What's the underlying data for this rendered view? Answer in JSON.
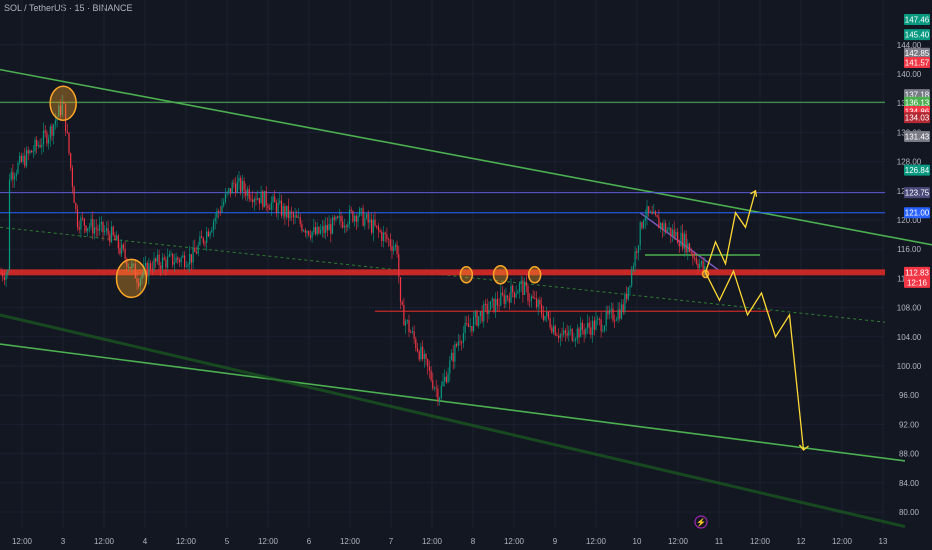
{
  "header": {
    "title": "SOL / TetherUS · 15 · BINANCE"
  },
  "chart_data": {
    "type": "candlestick",
    "symbol": "SOL / TetherUS",
    "interval": "15",
    "exchange": "BINANCE",
    "ylim": [
      78,
      150
    ],
    "y_ticks": [
      80,
      84,
      88,
      92,
      96,
      100,
      104,
      108,
      112,
      116,
      120,
      124,
      128,
      132,
      136,
      140,
      144
    ],
    "x_ticks": [
      "12:00",
      "3",
      "12:00",
      "4",
      "12:00",
      "5",
      "12:00",
      "6",
      "12:00",
      "7",
      "12:00",
      "8",
      "12:00",
      "9",
      "12:00",
      "10",
      "12:00",
      "11",
      "12:00",
      "12",
      "12:00",
      "13"
    ],
    "price_badges": [
      {
        "label": "147.46",
        "color": "#089981"
      },
      {
        "label": "145.40",
        "color": "#089981"
      },
      {
        "label": "142.85",
        "color": "#787b86"
      },
      {
        "label": "141.57",
        "color": "#f23645"
      },
      {
        "label": "137.18",
        "color": "#787b86"
      },
      {
        "label": "136.13",
        "color": "#4caf50"
      },
      {
        "label": "134.86",
        "color": "#f23645"
      },
      {
        "label": "134.03",
        "color": "#b22833"
      },
      {
        "label": "131.43",
        "color": "#787b86"
      },
      {
        "label": "126.84",
        "color": "#089981"
      },
      {
        "label": "123.75",
        "color": "#4a4a7a"
      },
      {
        "label": "121.00",
        "color": "#2962ff"
      },
      {
        "label": "112.83",
        "color": "#f23645"
      },
      {
        "label": "12:16",
        "color": "#f23645"
      }
    ],
    "current_price": 112.83,
    "countdown": "12:16",
    "horizontal_levels": [
      {
        "price": 136.13,
        "color": "#4caf50"
      },
      {
        "price": 123.75,
        "color": "#5b5bd6"
      },
      {
        "price": 121.0,
        "color": "#2962ff"
      },
      {
        "price": 112.83,
        "color": "#c62828"
      },
      {
        "price": 115.2,
        "color": "#4caf50"
      },
      {
        "price": 107.5,
        "color": "#c62828"
      }
    ],
    "price_path": [
      {
        "x": "2 06:00",
        "y": 126
      },
      {
        "x": "2 18:00",
        "y": 132
      },
      {
        "x": "2 22:00",
        "y": 136
      },
      {
        "x": "3 00:00",
        "y": 128
      },
      {
        "x": "3 02:00",
        "y": 120
      },
      {
        "x": "3 12:00",
        "y": 118
      },
      {
        "x": "3 20:00",
        "y": 112
      },
      {
        "x": "4 00:00",
        "y": 114
      },
      {
        "x": "4 12:00",
        "y": 115
      },
      {
        "x": "4 18:00",
        "y": 120
      },
      {
        "x": "5 00:00",
        "y": 125
      },
      {
        "x": "5 12:00",
        "y": 122
      },
      {
        "x": "6 00:00",
        "y": 118
      },
      {
        "x": "6 12:00",
        "y": 121
      },
      {
        "x": "7 00:00",
        "y": 116
      },
      {
        "x": "7 00:30",
        "y": 108
      },
      {
        "x": "7 12:00",
        "y": 96
      },
      {
        "x": "7 18:00",
        "y": 104
      },
      {
        "x": "8 00:00",
        "y": 107
      },
      {
        "x": "8 12:00",
        "y": 111
      },
      {
        "x": "9 00:00",
        "y": 104
      },
      {
        "x": "9 12:00",
        "y": 106
      },
      {
        "x": "9 18:00",
        "y": 108
      },
      {
        "x": "10 00:00",
        "y": 121
      },
      {
        "x": "10 12:00",
        "y": 117
      },
      {
        "x": "10 18:00",
        "y": 112.8
      }
    ],
    "projection_up": [
      112.8,
      117,
      114,
      121,
      119,
      124
    ],
    "projection_down": [
      112.8,
      109,
      113,
      107,
      110,
      104,
      107,
      88.5
    ]
  }
}
